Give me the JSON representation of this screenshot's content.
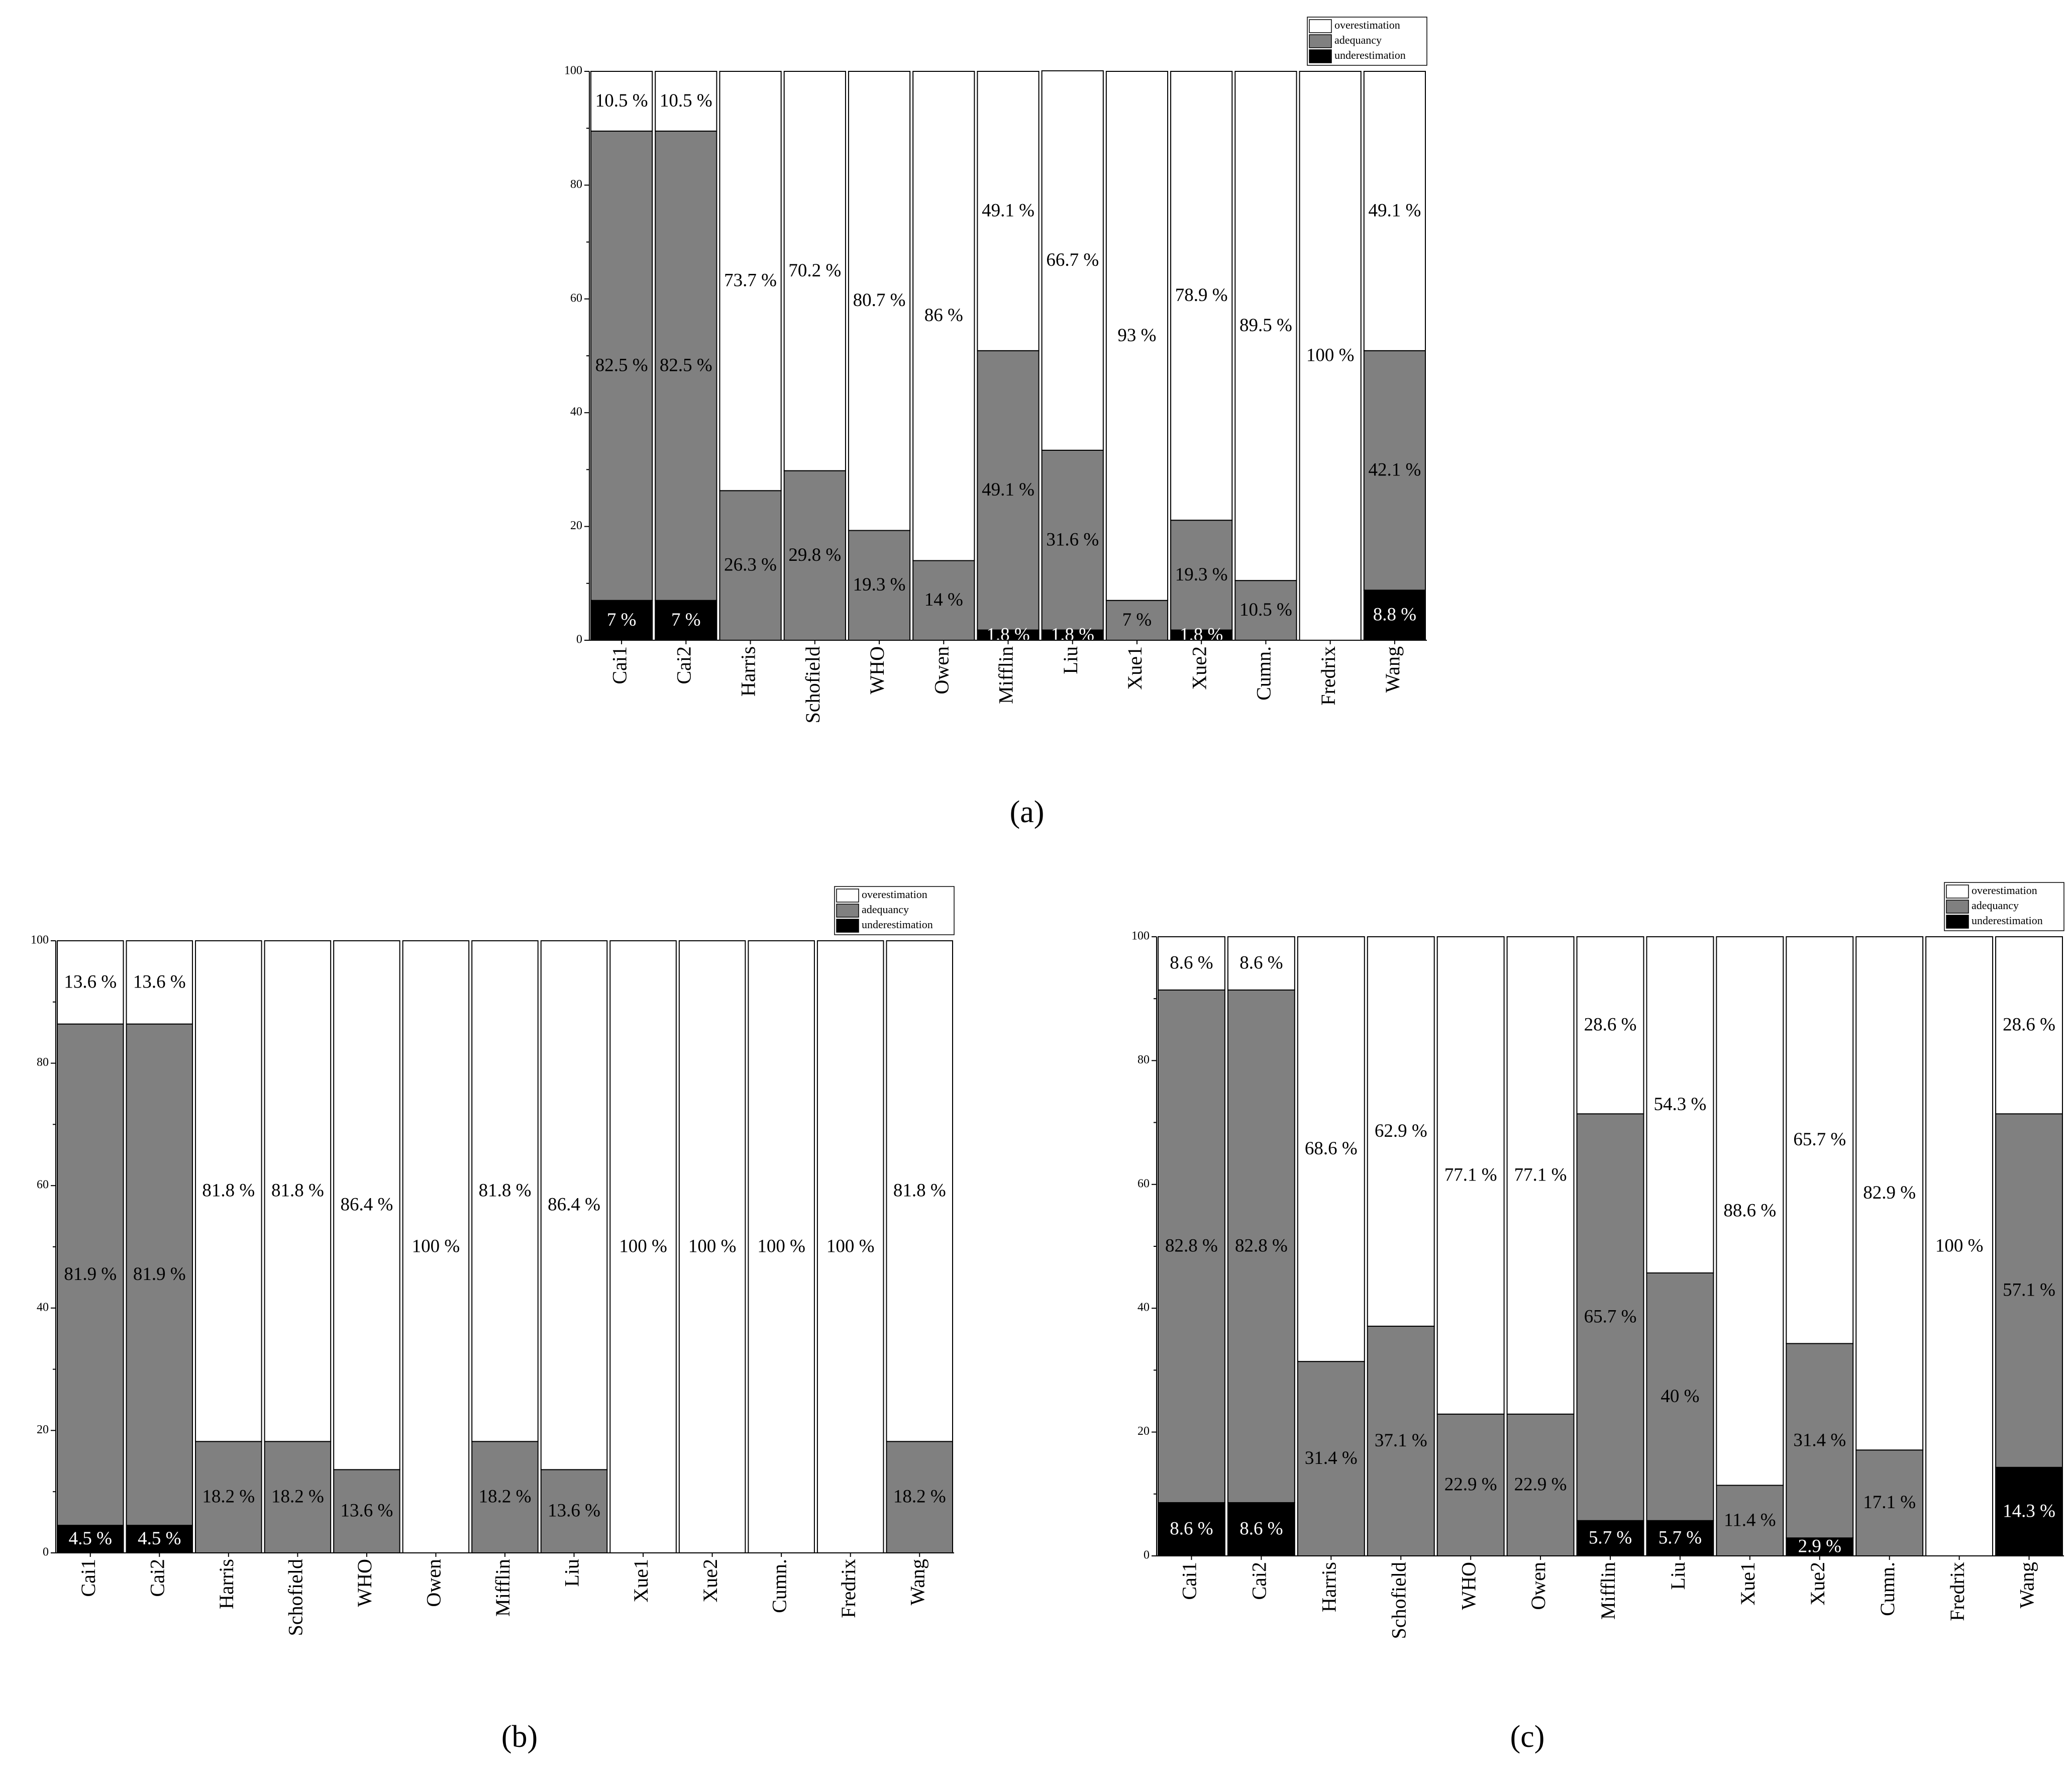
{
  "chart_data": [
    {
      "type": "stacked_bar",
      "caption": "(a)",
      "categories": [
        "Cai1",
        "Cai2",
        "Harris",
        "Schofield",
        "WHO",
        "Owen",
        "Mifflin",
        "Liu",
        "Xue1",
        "Xue2",
        "Cumn.",
        "Fredrix",
        "Wang"
      ],
      "series": [
        {
          "name": "underestimation",
          "color": "#000000",
          "values": [
            7,
            7,
            0,
            0,
            0,
            0,
            1.8,
            1.8,
            0,
            1.8,
            0,
            0,
            8.8
          ],
          "value_labels": [
            "7 %",
            "7 %",
            null,
            null,
            null,
            null,
            "1.8 %",
            "1.8 %",
            null,
            "1.8 %",
            null,
            null,
            "8.8 %"
          ]
        },
        {
          "name": "adequancy",
          "color": "#808080",
          "values": [
            82.5,
            82.5,
            26.3,
            29.8,
            19.3,
            14,
            49.1,
            31.6,
            7,
            19.3,
            10.5,
            0,
            42.1
          ],
          "value_labels": [
            "82.5 %",
            "82.5 %",
            "26.3 %",
            "29.8 %",
            "19.3 %",
            "14 %",
            "49.1 %",
            "31.6 %",
            "7 %",
            "19.3 %",
            "10.5 %",
            null,
            "42.1 %"
          ]
        },
        {
          "name": "overestimation",
          "color": "#ffffff",
          "values": [
            10.5,
            10.5,
            73.7,
            70.2,
            80.7,
            86,
            49.1,
            66.7,
            93,
            78.9,
            89.5,
            100,
            49.1
          ],
          "value_labels": [
            "10.5 %",
            "10.5 %",
            "73.7 %",
            "70.2 %",
            "80.7 %",
            "86 %",
            "49.1 %",
            "66.7 %",
            "93 %",
            "78.9 %",
            "89.5 %",
            "100 %",
            "49.1 %"
          ]
        }
      ],
      "ylim": [
        0,
        100
      ],
      "yticks": [
        0,
        20,
        40,
        60,
        80,
        100
      ],
      "legend": "top-right"
    },
    {
      "type": "stacked_bar",
      "caption": "(b)",
      "categories": [
        "Cai1",
        "Cai2",
        "Harris",
        "Schofield",
        "WHO",
        "Owen",
        "Mifflin",
        "Liu",
        "Xue1",
        "Xue2",
        "Cumn.",
        "Fredrix",
        "Wang"
      ],
      "series": [
        {
          "name": "underestimation",
          "color": "#000000",
          "values": [
            4.5,
            4.5,
            0,
            0,
            0,
            0,
            0,
            0,
            0,
            0,
            0,
            0,
            0
          ],
          "value_labels": [
            "4.5 %",
            "4.5 %",
            null,
            null,
            null,
            null,
            null,
            null,
            null,
            null,
            null,
            null,
            null
          ]
        },
        {
          "name": "adequancy",
          "color": "#808080",
          "values": [
            81.9,
            81.9,
            18.2,
            18.2,
            13.6,
            0,
            18.2,
            13.6,
            0,
            0,
            0,
            0,
            18.2
          ],
          "value_labels": [
            "81.9 %",
            "81.9 %",
            "18.2 %",
            "18.2 %",
            "13.6 %",
            null,
            "18.2 %",
            "13.6 %",
            null,
            null,
            null,
            null,
            "18.2 %"
          ]
        },
        {
          "name": "overestimation",
          "color": "#ffffff",
          "values": [
            13.6,
            13.6,
            81.8,
            81.8,
            86.4,
            100,
            81.8,
            86.4,
            100,
            100,
            100,
            100,
            81.8
          ],
          "value_labels": [
            "13.6 %",
            "13.6 %",
            "81.8 %",
            "81.8 %",
            "86.4 %",
            "100 %",
            "81.8 %",
            "86.4 %",
            "100 %",
            "100 %",
            "100 %",
            "100 %",
            "81.8 %"
          ]
        }
      ],
      "ylim": [
        0,
        100
      ],
      "yticks": [
        0,
        20,
        40,
        60,
        80,
        100
      ],
      "legend": "top-right"
    },
    {
      "type": "stacked_bar",
      "caption": "(c)",
      "categories": [
        "Cai1",
        "Cai2",
        "Harris",
        "Schofield",
        "WHO",
        "Owen",
        "Mifflin",
        "Liu",
        "Xue1",
        "Xue2",
        "Cumn.",
        "Fredrix",
        "Wang"
      ],
      "series": [
        {
          "name": "underestimation",
          "color": "#000000",
          "values": [
            8.6,
            8.6,
            0,
            0,
            0,
            0,
            5.7,
            5.7,
            0,
            2.9,
            0,
            0,
            14.3
          ],
          "value_labels": [
            "8.6 %",
            "8.6 %",
            null,
            null,
            null,
            null,
            "5.7 %",
            "5.7 %",
            null,
            "2.9 %",
            null,
            null,
            "14.3 %"
          ]
        },
        {
          "name": "adequancy",
          "color": "#808080",
          "values": [
            82.8,
            82.8,
            31.4,
            37.1,
            22.9,
            22.9,
            65.7,
            40,
            11.4,
            31.4,
            17.1,
            0,
            57.1
          ],
          "value_labels": [
            "82.8 %",
            "82.8 %",
            "31.4 %",
            "37.1 %",
            "22.9 %",
            "22.9 %",
            "65.7 %",
            "40 %",
            "11.4 %",
            "31.4 %",
            "17.1 %",
            null,
            "57.1 %"
          ]
        },
        {
          "name": "overestimation",
          "color": "#ffffff",
          "values": [
            8.6,
            8.6,
            68.6,
            62.9,
            77.1,
            77.1,
            28.6,
            54.3,
            88.6,
            65.7,
            82.9,
            100,
            28.6
          ],
          "value_labels": [
            "8.6 %",
            "8.6 %",
            "68.6 %",
            "62.9 %",
            "77.1 %",
            "77.1 %",
            "28.6 %",
            "54.3 %",
            "88.6 %",
            "65.7 %",
            "82.9 %",
            "100 %",
            "28.6 %"
          ]
        }
      ],
      "ylim": [
        0,
        100
      ],
      "yticks": [
        0,
        20,
        40,
        60,
        80,
        100
      ],
      "legend": "top-right"
    }
  ]
}
